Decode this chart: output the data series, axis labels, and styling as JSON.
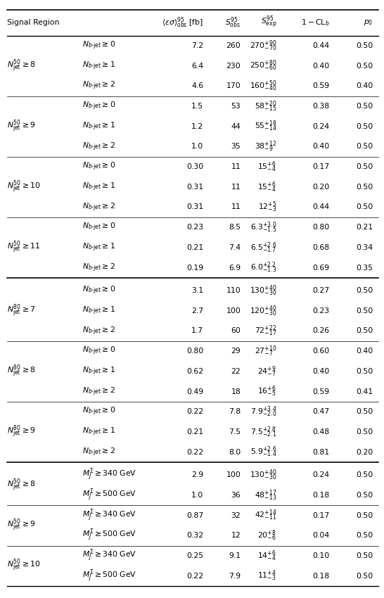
{
  "header": [
    "Signal Region",
    "",
    "⟨εσ⟩^{95}_{obs} [fb]",
    "S^{95}_{obs}",
    "S^{95}_{exp}",
    "1 - CL_b",
    "p_0"
  ],
  "groups": [
    {
      "label_main": "$N^{50}_{\\mathrm{jet}} \\geq 8$",
      "rows": [
        [
          "$N_{b\\text{-jet}} \\geq 0$",
          "7.2",
          "260",
          "$270^{+90}_{-70}$",
          "0.44",
          "0.50"
        ],
        [
          "$N_{b\\text{-jet}} \\geq 1$",
          "6.4",
          "230",
          "$250^{+80}_{-60}$",
          "0.40",
          "0.50"
        ],
        [
          "$N_{b\\text{-jet}} \\geq 2$",
          "4.6",
          "170",
          "$160^{+50}_{-40}$",
          "0.59",
          "0.40"
        ]
      ]
    },
    {
      "label_main": "$N^{50}_{\\mathrm{jet}} \\geq 9$",
      "rows": [
        [
          "$N_{b\\text{-jet}} \\geq 0$",
          "1.5",
          "53",
          "$58^{+20}_{-15}$",
          "0.38",
          "0.50"
        ],
        [
          "$N_{b\\text{-jet}} \\geq 1$",
          "1.2",
          "44",
          "$55^{+18}_{-14}$",
          "0.24",
          "0.50"
        ],
        [
          "$N_{b\\text{-jet}} \\geq 2$",
          "1.0",
          "35",
          "$38^{+12}_{-9}$",
          "0.40",
          "0.50"
        ]
      ]
    },
    {
      "label_main": "$N^{50}_{\\mathrm{jet}} \\geq 10$",
      "rows": [
        [
          "$N_{b\\text{-jet}} \\geq 0$",
          "0.30",
          "11",
          "$15^{+6}_{-4}$",
          "0.17",
          "0.50"
        ],
        [
          "$N_{b\\text{-jet}} \\geq 1$",
          "0.31",
          "11",
          "$15^{+6}_{-4}$",
          "0.20",
          "0.50"
        ],
        [
          "$N_{b\\text{-jet}} \\geq 2$",
          "0.31",
          "11",
          "$12^{+5}_{-3}$",
          "0.44",
          "0.50"
        ]
      ]
    },
    {
      "label_main": "$N^{50}_{\\mathrm{jet}} \\geq 11$",
      "rows": [
        [
          "$N_{b\\text{-jet}} \\geq 0$",
          "0.23",
          "8.5",
          "$6.3^{+3.0}_{-1.5}$",
          "0.80",
          "0.21"
        ],
        [
          "$N_{b\\text{-jet}} \\geq 1$",
          "0.21",
          "7.4",
          "$6.5^{+2.6}_{-1.7}$",
          "0.68",
          "0.34"
        ],
        [
          "$N_{b\\text{-jet}} \\geq 2$",
          "0.19",
          "6.9",
          "$6.0^{+2.2}_{-1.3}$",
          "0.69",
          "0.35"
        ]
      ]
    },
    {
      "label_main": "$N^{80}_{\\mathrm{jet}} \\geq 7$",
      "rows": [
        [
          "$N_{b\\text{-jet}} \\geq 0$",
          "3.1",
          "110",
          "$130^{+40}_{-30}$",
          "0.27",
          "0.50"
        ],
        [
          "$N_{b\\text{-jet}} \\geq 1$",
          "2.7",
          "100",
          "$120^{+40}_{-30}$",
          "0.23",
          "0.50"
        ],
        [
          "$N_{b\\text{-jet}} \\geq 2$",
          "1.7",
          "60",
          "$72^{+22}_{-17}$",
          "0.26",
          "0.50"
        ]
      ]
    },
    {
      "label_main": "$N^{80}_{\\mathrm{jet}} \\geq 8$",
      "rows": [
        [
          "$N_{b\\text{-jet}} \\geq 0$",
          "0.80",
          "29",
          "$27^{+10}_{-7}$",
          "0.60",
          "0.40"
        ],
        [
          "$N_{b\\text{-jet}} \\geq 1$",
          "0.62",
          "22",
          "$24^{+9}_{-7}$",
          "0.40",
          "0.50"
        ],
        [
          "$N_{b\\text{-jet}} \\geq 2$",
          "0.49",
          "18",
          "$16^{+6}_{-5}$",
          "0.59",
          "0.41"
        ]
      ]
    },
    {
      "label_main": "$N^{80}_{\\mathrm{jet}} \\geq 9$",
      "rows": [
        [
          "$N_{b\\text{-jet}} \\geq 0$",
          "0.22",
          "7.8",
          "$7.9^{+3.4}_{-2.0}$",
          "0.47",
          "0.50"
        ],
        [
          "$N_{b\\text{-jet}} \\geq 1$",
          "0.21",
          "7.5",
          "$7.5^{+2.8}_{-2.1}$",
          "0.48",
          "0.50"
        ],
        [
          "$N_{b\\text{-jet}} \\geq 2$",
          "0.22",
          "8.0",
          "$5.9^{+2.6}_{-1.4}$",
          "0.81",
          "0.20"
        ]
      ]
    },
    {
      "label_main": "$N^{50}_{\\mathrm{jet}} \\geq 8$",
      "rows": [
        [
          "$M^{\\Sigma}_{J} \\geq 340$ GeV",
          "2.9",
          "100",
          "$130^{+40}_{-30}$",
          "0.24",
          "0.50"
        ],
        [
          "$M^{\\Sigma}_{J} \\geq 500$ GeV",
          "1.0",
          "36",
          "$48^{+17}_{-13}$",
          "0.18",
          "0.50"
        ]
      ]
    },
    {
      "label_main": "$N^{50}_{\\mathrm{jet}} \\geq 9$",
      "rows": [
        [
          "$M^{\\Sigma}_{J} \\geq 340$ GeV",
          "0.87",
          "32",
          "$42^{+14}_{-11}$",
          "0.17",
          "0.50"
        ],
        [
          "$M^{\\Sigma}_{J} \\geq 500$ GeV",
          "0.32",
          "12",
          "$20^{+8}_{-6}$",
          "0.04",
          "0.50"
        ]
      ]
    },
    {
      "label_main": "$N^{50}_{\\mathrm{jet}} \\geq 10$",
      "rows": [
        [
          "$M^{\\Sigma}_{J} \\geq 340$ GeV",
          "0.25",
          "9.1",
          "$14^{+6}_{-4}$",
          "0.10",
          "0.50"
        ],
        [
          "$M^{\\Sigma}_{J} \\geq 500$ GeV",
          "0.22",
          "7.9",
          "$11^{+4}_{-3}$",
          "0.18",
          "0.50"
        ]
      ]
    }
  ],
  "section_breaks_thick": [
    3,
    6
  ],
  "bg_color": "#ffffff",
  "text_color": "#000000",
  "font_size": 7.8,
  "header_font_size": 7.8
}
